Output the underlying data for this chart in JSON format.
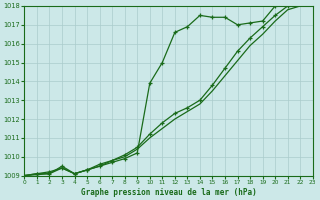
{
  "title": "Graphe pression niveau de la mer (hPa)",
  "x_min": 0,
  "x_max": 23,
  "y_min": 1009,
  "y_max": 1018,
  "bg_color": "#cce8e8",
  "grid_color": "#aacccc",
  "line_color": "#1a6b1a",
  "series_x": [
    0,
    1,
    2,
    3,
    4,
    5,
    6,
    7,
    8,
    9,
    10,
    11,
    12,
    13,
    14,
    15,
    16,
    17,
    18,
    19,
    20,
    21,
    22,
    23
  ],
  "values1": [
    1009.0,
    1009.1,
    1009.2,
    1009.4,
    1009.1,
    1009.3,
    1009.5,
    1009.7,
    1009.9,
    1010.2,
    1013.9,
    1015.0,
    1016.6,
    1016.9,
    1017.5,
    1017.4,
    1017.4,
    1017.0,
    1017.1,
    1017.2,
    1018.0,
    1018.2,
    1018.1,
    1018.1
  ],
  "values2": [
    1009.0,
    1009.1,
    1009.1,
    1009.5,
    1009.1,
    1009.3,
    1009.6,
    1009.8,
    1010.1,
    1010.5,
    1011.2,
    1011.8,
    1012.3,
    1012.6,
    1013.0,
    1013.8,
    1014.7,
    1015.6,
    1016.3,
    1016.9,
    1017.5,
    1018.0,
    1018.1,
    1018.1
  ],
  "values3": [
    1009.0,
    1009.05,
    1009.1,
    1009.4,
    1009.1,
    1009.3,
    1009.5,
    1009.8,
    1010.0,
    1010.4,
    1011.0,
    1011.5,
    1012.0,
    1012.4,
    1012.8,
    1013.5,
    1014.3,
    1015.1,
    1015.9,
    1016.5,
    1017.2,
    1017.8,
    1018.0,
    1018.0
  ]
}
